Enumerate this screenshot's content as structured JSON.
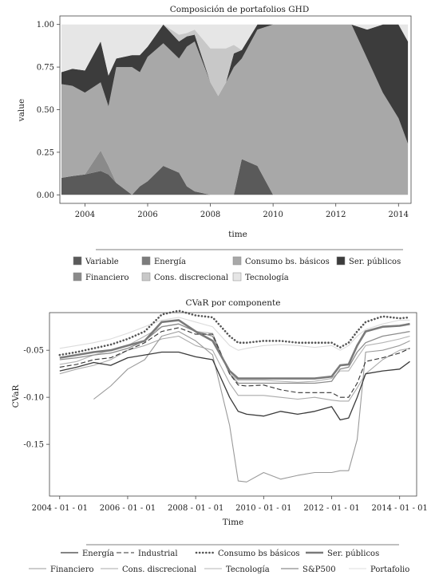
{
  "chart_data": [
    {
      "type": "area",
      "title": "Composición de portafolios GHD",
      "xlabel": "time",
      "ylabel": "value",
      "xlim": [
        2003.2,
        2014.4
      ],
      "ylim": [
        -0.05,
        1.05
      ],
      "x_ticks": [
        "2004",
        "2006",
        "2008",
        "2010",
        "2012",
        "2014"
      ],
      "y_ticks": [
        "0.00",
        "0.25",
        "0.50",
        "0.75",
        "1.00"
      ],
      "x": [
        2003.25,
        2003.6,
        2004.0,
        2004.5,
        2004.75,
        2005.0,
        2005.5,
        2005.75,
        2006.0,
        2006.5,
        2007.0,
        2007.25,
        2007.5,
        2008.0,
        2008.25,
        2008.5,
        2008.75,
        2009.0,
        2009.5,
        2010.0,
        2011.0,
        2012.0,
        2012.5,
        2013.0,
        2013.5,
        2014.0,
        2014.3
      ],
      "series": [
        {
          "name": "Variable",
          "color": "#5a5a5a",
          "values": [
            0.1,
            0.11,
            0.12,
            0.14,
            0.12,
            0.07,
            0.0,
            0.05,
            0.08,
            0.17,
            0.13,
            0.05,
            0.02,
            0.0,
            0.0,
            0.0,
            0.0,
            0.21,
            0.17,
            0.0,
            0.0,
            0.0,
            0.0,
            0.0,
            0.0,
            0.0,
            0.0
          ]
        },
        {
          "name": "Financiero",
          "color": "#8a8a8a",
          "values": [
            0.0,
            0.0,
            0.0,
            0.12,
            0.05,
            0.0,
            0.0,
            0.0,
            0.0,
            0.0,
            0.0,
            0.0,
            0.0,
            0.0,
            0.0,
            0.0,
            0.0,
            0.0,
            0.0,
            0.0,
            0.0,
            0.0,
            0.0,
            0.0,
            0.0,
            0.0,
            0.0
          ]
        },
        {
          "name": "Energía",
          "color": "#7c7c7c",
          "values": [
            0.0,
            0.0,
            0.0,
            0.0,
            0.0,
            0.0,
            0.0,
            0.0,
            0.0,
            0.0,
            0.0,
            0.0,
            0.0,
            0.0,
            0.0,
            0.0,
            0.0,
            0.0,
            0.0,
            0.0,
            0.0,
            0.0,
            0.0,
            0.0,
            0.0,
            0.0,
            0.0
          ]
        },
        {
          "name": "Consumo bs. básicos",
          "color": "#a8a8a8",
          "values": [
            0.55,
            0.53,
            0.48,
            0.4,
            0.35,
            0.68,
            0.75,
            0.67,
            0.73,
            0.72,
            0.67,
            0.82,
            0.88,
            0.66,
            0.58,
            0.66,
            0.75,
            0.59,
            0.8,
            1.0,
            1.0,
            1.0,
            1.0,
            0.8,
            0.6,
            0.45,
            0.3
          ]
        },
        {
          "name": "Ser. públicos",
          "color": "#3c3c3c",
          "values": [
            0.07,
            0.1,
            0.13,
            0.24,
            0.18,
            0.05,
            0.07,
            0.1,
            0.06,
            0.11,
            0.1,
            0.06,
            0.04,
            0.0,
            0.0,
            0.0,
            0.08,
            0.05,
            0.03,
            0.0,
            0.0,
            0.0,
            0.0,
            0.17,
            0.4,
            0.55,
            0.6
          ]
        },
        {
          "name": "Cons. discrecional",
          "color": "#c8c8c8",
          "values": [
            0.0,
            0.0,
            0.0,
            0.0,
            0.0,
            0.0,
            0.0,
            0.0,
            0.0,
            0.0,
            0.04,
            0.02,
            0.03,
            0.2,
            0.28,
            0.2,
            0.05,
            0.0,
            0.0,
            0.0,
            0.0,
            0.0,
            0.0,
            0.0,
            0.0,
            0.0,
            0.0
          ]
        },
        {
          "name": "Tecnología",
          "color": "#e6e6e6",
          "values": [
            0.28,
            0.26,
            0.27,
            0.1,
            0.3,
            0.2,
            0.18,
            0.18,
            0.13,
            0.0,
            0.06,
            0.05,
            0.03,
            0.14,
            0.14,
            0.14,
            0.12,
            0.15,
            0.0,
            0.0,
            0.0,
            0.0,
            0.0,
            0.03,
            0.0,
            0.0,
            0.1
          ]
        }
      ],
      "legend_rows": [
        [
          "Variable",
          "Energía",
          "Consumo bs. básicos",
          "Ser. públicos"
        ],
        [
          "Financiero",
          "Cons. discrecional",
          "Tecnología"
        ]
      ],
      "legend_position": "bottom"
    },
    {
      "type": "line",
      "title": "CVaR por componente",
      "xlabel": "Time",
      "ylabel": "CVaR",
      "xlim": [
        2003.7,
        2014.5
      ],
      "ylim": [
        -0.205,
        -0.01
      ],
      "x_ticks": [
        "2004 - 01 - 01",
        "2006 - 01 - 01",
        "2008 - 01 - 01",
        "2010 - 01 - 01",
        "2012 - 01 - 01",
        "2014 - 01 - 01"
      ],
      "y_ticks": [
        "-0.05",
        "-0.10",
        "-0.15"
      ],
      "x": [
        2004.0,
        2004.5,
        2005.0,
        2005.5,
        2006.0,
        2006.5,
        2007.0,
        2007.5,
        2008.0,
        2008.5,
        2009.0,
        2009.25,
        2009.5,
        2010.0,
        2010.5,
        2011.0,
        2011.5,
        2012.0,
        2012.25,
        2012.5,
        2012.75,
        2013.0,
        2013.5,
        2014.0,
        2014.3
      ],
      "series": [
        {
          "name": "Energía",
          "style": "solid",
          "color": "#3a3a3a",
          "width": 1.3,
          "values": [
            -0.072,
            -0.068,
            -0.063,
            -0.066,
            -0.058,
            -0.055,
            -0.052,
            -0.052,
            -0.057,
            -0.06,
            -0.1,
            -0.115,
            -0.118,
            -0.12,
            -0.115,
            -0.118,
            -0.115,
            -0.11,
            -0.124,
            -0.122,
            -0.1,
            -0.075,
            -0.072,
            -0.07,
            -0.062
          ]
        },
        {
          "name": "Industrial",
          "style": "dashed",
          "color": "#333333",
          "width": 1.1,
          "values": [
            -0.068,
            -0.065,
            -0.06,
            -0.058,
            -0.05,
            -0.042,
            -0.03,
            -0.026,
            -0.033,
            -0.033,
            -0.075,
            -0.087,
            -0.088,
            -0.087,
            -0.092,
            -0.095,
            -0.095,
            -0.095,
            -0.1,
            -0.1,
            -0.085,
            -0.062,
            -0.058,
            -0.053,
            -0.048
          ]
        },
        {
          "name": "Consumo bs básicos",
          "style": "dotted",
          "color": "#555555",
          "width": 2.6,
          "values": [
            -0.055,
            -0.052,
            -0.048,
            -0.044,
            -0.038,
            -0.03,
            -0.012,
            -0.008,
            -0.013,
            -0.015,
            -0.035,
            -0.042,
            -0.042,
            -0.04,
            -0.04,
            -0.042,
            -0.042,
            -0.042,
            -0.047,
            -0.042,
            -0.03,
            -0.02,
            -0.014,
            -0.016,
            -0.015
          ]
        },
        {
          "name": "Ser. públicos",
          "style": "solid",
          "color": "#7a7a7a",
          "width": 2.6,
          "values": [
            -0.058,
            -0.055,
            -0.052,
            -0.05,
            -0.045,
            -0.04,
            -0.02,
            -0.018,
            -0.03,
            -0.04,
            -0.072,
            -0.08,
            -0.08,
            -0.08,
            -0.08,
            -0.08,
            -0.08,
            -0.078,
            -0.066,
            -0.065,
            -0.045,
            -0.03,
            -0.025,
            -0.024,
            -0.022
          ]
        },
        {
          "name": "Financiero",
          "style": "solid",
          "color": "#9a9a9a",
          "width": 1.1,
          "values": [
            null,
            null,
            -0.102,
            -0.088,
            -0.07,
            -0.06,
            -0.035,
            -0.03,
            -0.04,
            -0.055,
            -0.13,
            -0.189,
            -0.19,
            -0.18,
            -0.187,
            -0.183,
            -0.18,
            -0.18,
            -0.178,
            -0.178,
            -0.145,
            -0.052,
            -0.05,
            -0.045,
            -0.04
          ]
        },
        {
          "name": "Cons. discrecional",
          "style": "solid",
          "color": "#aaaaaa",
          "width": 1.1,
          "values": [
            -0.075,
            -0.07,
            -0.066,
            -0.06,
            -0.05,
            -0.045,
            -0.038,
            -0.035,
            -0.045,
            -0.05,
            -0.085,
            -0.098,
            -0.098,
            -0.098,
            -0.1,
            -0.102,
            -0.1,
            -0.103,
            -0.104,
            -0.104,
            -0.09,
            -0.075,
            -0.06,
            -0.05,
            -0.048
          ]
        },
        {
          "name": "Tecnología",
          "style": "solid",
          "color": "#b4b4b4",
          "width": 1.1,
          "values": [
            -0.065,
            -0.062,
            -0.055,
            -0.05,
            -0.045,
            -0.035,
            -0.025,
            -0.022,
            -0.03,
            -0.032,
            -0.075,
            -0.082,
            -0.082,
            -0.082,
            -0.083,
            -0.084,
            -0.083,
            -0.08,
            -0.072,
            -0.072,
            -0.058,
            -0.045,
            -0.042,
            -0.038,
            -0.035
          ]
        },
        {
          "name": "S&P500",
          "style": "solid",
          "color": "#8c8c8c",
          "width": 1.3,
          "values": [
            -0.06,
            -0.058,
            -0.055,
            -0.053,
            -0.048,
            -0.04,
            -0.025,
            -0.022,
            -0.03,
            -0.035,
            -0.075,
            -0.085,
            -0.085,
            -0.085,
            -0.085,
            -0.085,
            -0.085,
            -0.083,
            -0.07,
            -0.068,
            -0.052,
            -0.042,
            -0.035,
            -0.032,
            -0.03
          ]
        },
        {
          "name": "Portafolio",
          "style": "solid",
          "color": "#dcdcdc",
          "width": 1.1,
          "values": [
            -0.048,
            -0.045,
            -0.042,
            -0.038,
            -0.032,
            -0.025,
            -0.018,
            -0.015,
            -0.02,
            -0.025,
            -0.045,
            -0.05,
            -0.048,
            -0.045,
            -0.044,
            -0.045,
            -0.047,
            -0.045,
            -0.05,
            -0.045,
            -0.035,
            -0.028,
            -0.022,
            -0.018,
            -0.018
          ]
        }
      ],
      "legend_rows": [
        [
          "Energía",
          "Industrial",
          "Consumo bs básicos",
          "Ser. públicos"
        ],
        [
          "Financiero",
          "Cons. discrecional",
          "Tecnología",
          "S&P500",
          "Portafolio"
        ]
      ],
      "legend_position": "bottom"
    }
  ]
}
